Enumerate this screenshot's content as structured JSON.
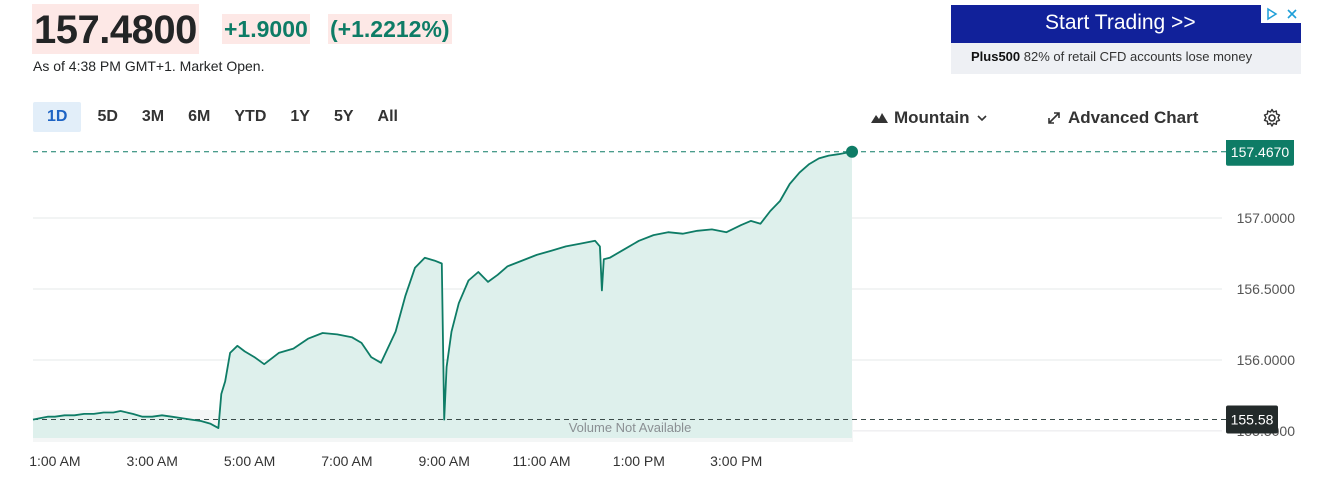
{
  "quote": {
    "price": "157.4800",
    "change": "+1.9000",
    "change_pct": "(+1.2212%)",
    "as_of": "As of 4:38 PM GMT+1. Market Open."
  },
  "ad": {
    "button_label": "Start Trading >>",
    "brand": "Plus500",
    "disclaimer": " 82% of retail CFD accounts lose money"
  },
  "ranges": [
    "1D",
    "5D",
    "3M",
    "6M",
    "YTD",
    "1Y",
    "5Y",
    "All"
  ],
  "active_range": "1D",
  "toolbar": {
    "chart_type_label": "Mountain",
    "advanced_label": "Advanced Chart"
  },
  "colors": {
    "line": "#0e7c66",
    "area": "#dcefeb",
    "last_tag": "#0e7c66",
    "prev_close_tag": "#232a2a",
    "ad_button": "#11219a"
  },
  "icons": [
    "mountain-icon",
    "chevron-down-icon",
    "expand-arrows-icon",
    "gear-icon",
    "adchoices-icon",
    "close-icon"
  ],
  "chart_data": {
    "type": "area",
    "x_tick_labels": [
      "1:00 AM",
      "3:00 AM",
      "5:00 AM",
      "7:00 AM",
      "9:00 AM",
      "11:00 AM",
      "1:00 PM",
      "3:00 PM"
    ],
    "x_ticks_hours": [
      1,
      3,
      5,
      7,
      9,
      11,
      13,
      15
    ],
    "y_ticks": [
      "157.0000",
      "156.5000",
      "156.0000",
      "155.5000"
    ],
    "y_tick_values": [
      157.0,
      156.5,
      156.0,
      155.5
    ],
    "ylim": [
      155.45,
      157.55
    ],
    "xlim_hours": [
      0.55,
      17.4
    ],
    "last_value_label": "157.4670",
    "last_value": 157.467,
    "prev_close_label": "155.58",
    "prev_close": 155.58,
    "volume_note": "Volume Not Available",
    "grid": "horizontal",
    "series": [
      {
        "x_hours": [
          0.55,
          0.7,
          0.85,
          1.0,
          1.2,
          1.4,
          1.6,
          1.8,
          2.0,
          2.2,
          2.35,
          2.6,
          2.8,
          3.0,
          3.2,
          3.4,
          3.6,
          3.8,
          4.0,
          4.2,
          4.36,
          4.42,
          4.5,
          4.6,
          4.75,
          4.9,
          5.1,
          5.3,
          5.6,
          5.9,
          6.2,
          6.5,
          6.8,
          7.1,
          7.3,
          7.5,
          7.7,
          8.0,
          8.2,
          8.4,
          8.6,
          8.8,
          8.95,
          9.0,
          9.05,
          9.15,
          9.3,
          9.5,
          9.7,
          9.9,
          10.1,
          10.3,
          10.6,
          10.9,
          11.2,
          11.5,
          11.8,
          12.1,
          12.2,
          12.24,
          12.28,
          12.4,
          12.7,
          13.0,
          13.3,
          13.6,
          13.9,
          14.2,
          14.5,
          14.8,
          15.1,
          15.3,
          15.5,
          15.7,
          15.9,
          16.1,
          16.3,
          16.5,
          16.7,
          16.9,
          17.1,
          17.26,
          17.38
        ],
        "values": [
          155.58,
          155.59,
          155.6,
          155.6,
          155.61,
          155.61,
          155.62,
          155.62,
          155.63,
          155.63,
          155.64,
          155.62,
          155.6,
          155.6,
          155.61,
          155.6,
          155.59,
          155.58,
          155.57,
          155.55,
          155.52,
          155.76,
          155.85,
          156.05,
          156.1,
          156.06,
          156.02,
          155.97,
          156.05,
          156.08,
          156.15,
          156.19,
          156.18,
          156.16,
          156.12,
          156.02,
          155.98,
          156.2,
          156.45,
          156.65,
          156.72,
          156.7,
          156.68,
          155.58,
          155.95,
          156.2,
          156.4,
          156.56,
          156.62,
          156.55,
          156.6,
          156.66,
          156.7,
          156.74,
          156.77,
          156.8,
          156.82,
          156.84,
          156.8,
          156.49,
          156.71,
          156.72,
          156.78,
          156.84,
          156.88,
          156.9,
          156.89,
          156.91,
          156.92,
          156.9,
          156.95,
          156.98,
          156.96,
          157.05,
          157.12,
          157.24,
          157.32,
          157.38,
          157.42,
          157.44,
          157.45,
          157.46,
          157.467
        ]
      }
    ]
  }
}
